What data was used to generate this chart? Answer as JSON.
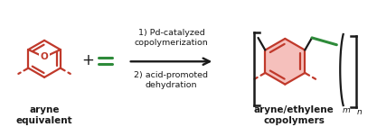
{
  "bg_color": "#ffffff",
  "red_color": "#c0392b",
  "green_color": "#2e8b3a",
  "black_color": "#1a1a1a",
  "label_aryne": "aryne\nequivalent",
  "label_product": "aryne/ethylene\ncopolymers",
  "step1_text": "1) Pd-catalyzed\ncopolymerization",
  "step2_text": "2) acid-promoted\ndehydration",
  "oxygen_label": "O",
  "figsize": [
    4.17,
    1.41
  ],
  "dpi": 100
}
